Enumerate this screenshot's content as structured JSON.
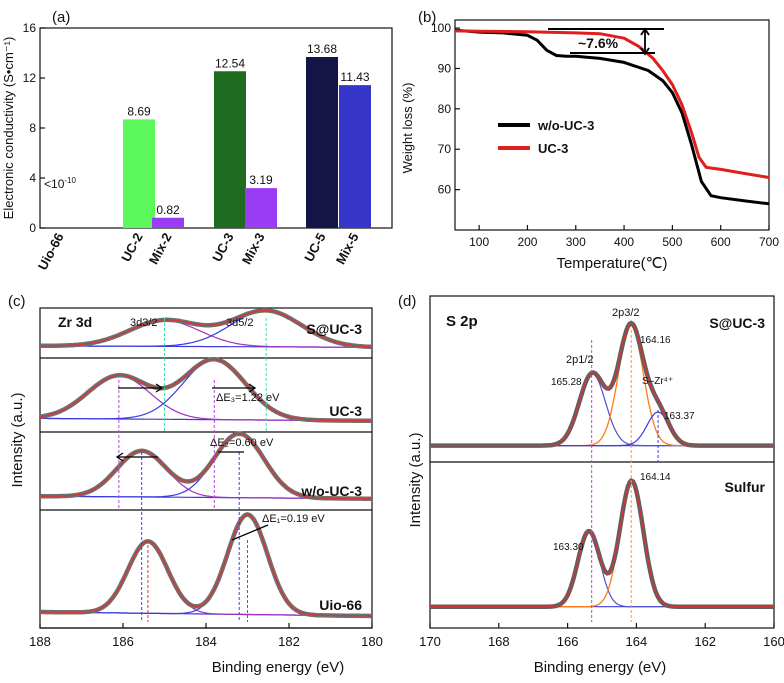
{
  "chart_data": [
    {
      "panel": "(a)",
      "type": "bar",
      "ylabel": "Electronic conductivity (S•cm⁻¹)",
      "ylim": [
        0,
        16
      ],
      "yticks": [
        0,
        4,
        8,
        12,
        16
      ],
      "categories": [
        "Uio-66",
        "UC-2",
        "Mix-2",
        "UC-3",
        "Mix-3",
        "UC-5",
        "Mix-5"
      ],
      "values": [
        0,
        8.69,
        0.82,
        12.54,
        3.19,
        13.68,
        11.43
      ],
      "labels": [
        "<10",
        "8.69",
        "0.82",
        "12.54",
        "3.19",
        "13.68",
        "11.43"
      ],
      "superscript": "-10",
      "colors": [
        "#ffffff",
        "#5cf85c",
        "#9b3cf5",
        "#1f6b1f",
        "#9b3cf5",
        "#141446",
        "#3535c9"
      ]
    },
    {
      "panel": "(b)",
      "type": "line",
      "xlabel": "Temperature(℃)",
      "ylabel": "Weight loss (%)",
      "xlim": [
        50,
        700
      ],
      "ylim": [
        50,
        102
      ],
      "xticks": [
        100,
        200,
        300,
        400,
        500,
        600,
        700
      ],
      "yticks": [
        60,
        70,
        80,
        90,
        100
      ],
      "annotation": "~7.6%",
      "series": [
        {
          "name": "w/o-UC-3",
          "color": "#000000",
          "x": [
            50,
            100,
            150,
            200,
            220,
            240,
            260,
            280,
            300,
            350,
            400,
            450,
            480,
            500,
            520,
            540,
            560,
            580,
            600,
            650,
            700
          ],
          "y": [
            99.5,
            99,
            98.8,
            98.2,
            97,
            94.5,
            93.2,
            93,
            93,
            92.5,
            91.5,
            89.5,
            87,
            84,
            79,
            71,
            62,
            58.5,
            58,
            57.2,
            56.5
          ]
        },
        {
          "name": "UC-3",
          "color": "#e01e1e",
          "x": [
            50,
            100,
            200,
            300,
            350,
            400,
            430,
            460,
            480,
            500,
            520,
            540,
            555,
            570,
            600,
            650,
            700
          ],
          "y": [
            99.3,
            99.2,
            99.1,
            98.8,
            98.6,
            97.5,
            95.5,
            92.5,
            89.5,
            86,
            81,
            74,
            68,
            65.5,
            65,
            64,
            63
          ]
        }
      ]
    },
    {
      "panel": "(c)",
      "type": "line",
      "title": "Zr 3d",
      "xlabel": "Binding energy (eV)",
      "ylabel": "Intensity (a.u.)",
      "xlim": [
        188,
        180
      ],
      "xticks": [
        188,
        186,
        184,
        182,
        180
      ],
      "peak_labels": [
        "3d3/2",
        "3d5/2"
      ],
      "stacks": [
        {
          "name": "S@UC-3",
          "peaks": [
            185.0,
            182.55
          ]
        },
        {
          "name": "UC-3",
          "peaks": [
            186.1,
            183.8
          ],
          "delta": "ΔE₃=1.22 eV"
        },
        {
          "name": "w/o-UC-3",
          "peaks": [
            185.55,
            183.2
          ],
          "delta": "ΔE₂=0.60 eV"
        },
        {
          "name": "Uio-66",
          "peaks": [
            185.4,
            183.0
          ],
          "delta": "ΔE₁=0.19 eV"
        }
      ]
    },
    {
      "panel": "(d)",
      "type": "line",
      "title": "S 2p",
      "xlabel": "Binding energy (eV)",
      "ylabel": "Intensity (a.u.)",
      "xlim": [
        170,
        160
      ],
      "xticks": [
        170,
        168,
        166,
        164,
        162,
        160
      ],
      "stacks": [
        {
          "name": "S@UC-3",
          "peak_labels": [
            "2p1/2",
            "2p3/2",
            "165.28",
            "164.16",
            "163.37"
          ],
          "extra": "S–Zr⁴⁺"
        },
        {
          "name": "Sulfur",
          "peak_labels": [
            "163.30",
            "164.14"
          ]
        }
      ]
    }
  ]
}
